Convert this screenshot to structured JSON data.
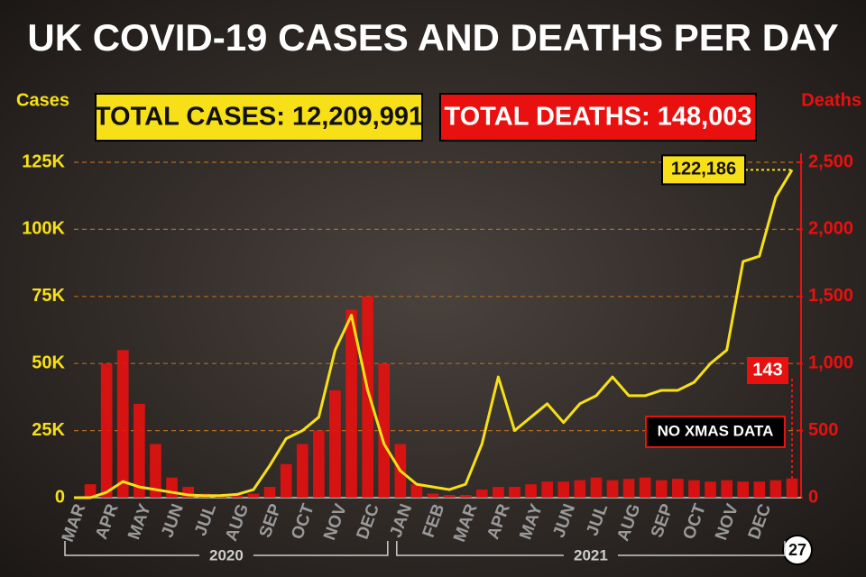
{
  "chart_data": {
    "type": "bar-line",
    "title": "UK COVID-19 CASES AND DEATHS PER DAY",
    "y_label": "Cases",
    "y2_label": "Deaths",
    "total_cases_label": "TOTAL CASES: 12,209,991",
    "total_deaths_label": "TOTAL DEATHS: 148,003",
    "annotations": [
      "122,186",
      "143",
      "NO XMAS DATA"
    ],
    "years": [
      "2020",
      "2021"
    ],
    "categories": [
      "MAR",
      null,
      "APR",
      null,
      "MAY",
      null,
      "JUN",
      null,
      "JUL",
      null,
      "AUG",
      null,
      "SEP",
      null,
      "OCT",
      null,
      "NOV",
      null,
      "DEC",
      null,
      "JAN",
      null,
      "FEB",
      null,
      "MAR",
      null,
      "APR",
      null,
      "MAY",
      null,
      "JUN",
      null,
      "JUL",
      null,
      "AUG",
      null,
      "SEP",
      null,
      "OCT",
      null,
      "NOV",
      null,
      "DEC",
      null,
      "27"
    ],
    "series": [
      {
        "name": "Cases",
        "color": "#f7e017",
        "values": [
          0,
          0,
          2000,
          6000,
          4000,
          3000,
          2000,
          1000,
          700,
          800,
          1200,
          3000,
          12000,
          22000,
          25000,
          30000,
          55000,
          68000,
          40000,
          20000,
          10000,
          5000,
          4000,
          3000,
          5000,
          20000,
          45000,
          25000,
          30000,
          35000,
          28000,
          35000,
          38000,
          45000,
          38000,
          38000,
          40000,
          40000,
          43000,
          50000,
          55000,
          88000,
          90000,
          112000,
          122186
        ]
      },
      {
        "name": "Deaths",
        "color": "#e8110f",
        "axis": "y2",
        "values": [
          0,
          100,
          1000,
          1100,
          700,
          400,
          150,
          80,
          30,
          20,
          15,
          30,
          80,
          250,
          400,
          500,
          800,
          1400,
          1500,
          1000,
          400,
          100,
          30,
          20,
          20,
          60,
          80,
          80,
          100,
          120,
          120,
          130,
          150,
          130,
          140,
          150,
          130,
          140,
          130,
          120,
          130,
          120,
          120,
          130,
          143
        ]
      }
    ],
    "ylim": [
      0,
      125000
    ],
    "yticks": [
      0,
      {
        "value": 25000,
        "label": "25K"
      },
      {
        "value": 50000,
        "label": "50K"
      },
      {
        "value": 75000,
        "label": "75K"
      },
      {
        "value": 100000,
        "label": "100K"
      },
      {
        "value": 125000,
        "label": "125K"
      }
    ],
    "y2lim": [
      0,
      2500
    ],
    "y2ticks": [
      0,
      500,
      {
        "value": 1000,
        "label": "1,000"
      },
      {
        "value": 1500,
        "label": "1,500"
      },
      {
        "value": 2000,
        "label": "2,000"
      },
      {
        "value": 2500,
        "label": "2,500"
      }
    ],
    "grid": true
  }
}
